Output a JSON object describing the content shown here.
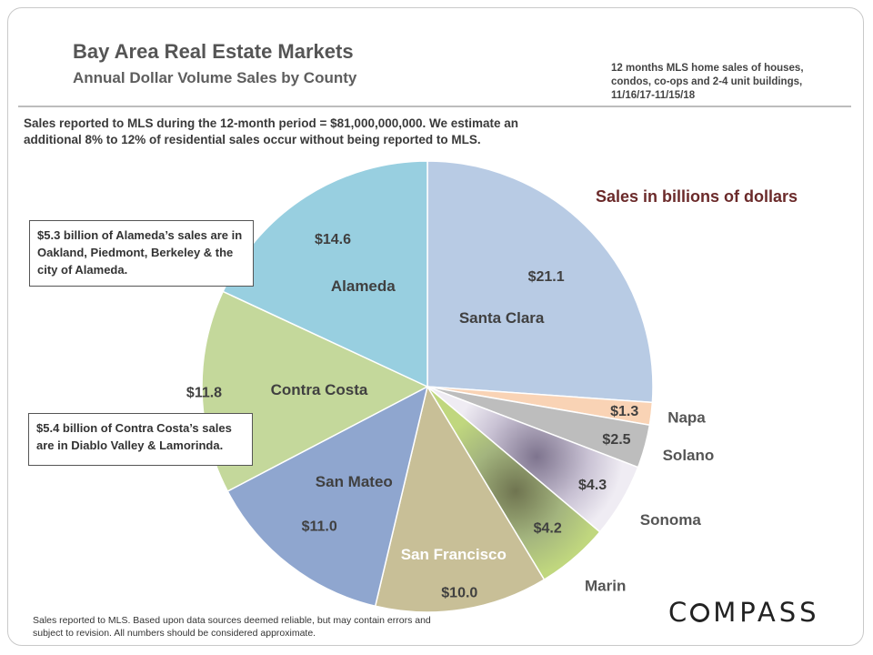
{
  "title": "Bay Area Real Estate Markets",
  "subtitle": "Annual Dollar Volume Sales by County",
  "source_note": "12 months MLS home sales of houses, condos, co-ops and 2-4 unit buildings, 11/16/17-11/15/18",
  "intro_text": "Sales reported to MLS during the 12-month period = $81,000,000,000. We estimate an additional 8% to 12% of residential sales occur without being reported to MLS.",
  "callouts": {
    "alameda": "$5.3 billion of Alameda’s sales are in Oakland, Piedmont, Berkeley & the city of Alameda.",
    "contra_costa": "$5.4 billion of Contra Costa’s sales are in Diablo Valley & Lamorinda."
  },
  "footer_text": "Sales reported to MLS. Based upon data sources deemed reliable, but may contain errors and  subject to revision. All numbers should be considered approximate.",
  "brand": {
    "o": "O",
    "rest": "MPASS",
    "c": "C"
  },
  "chart_data": {
    "type": "pie",
    "legend_title": "Sales in billions of dollars",
    "slices": [
      {
        "label": "Santa Clara",
        "value": 21.1,
        "value_label": "$21.1",
        "color": "#b8cbe4"
      },
      {
        "label": "Napa",
        "value": 1.3,
        "value_label": "$1.3",
        "color": "#f9d3b5"
      },
      {
        "label": "Solano",
        "value": 2.5,
        "value_label": "$2.5",
        "color": "#bdbdbd"
      },
      {
        "label": "Sonoma",
        "value": 4.3,
        "value_label": "$4.3",
        "color": "#a49bb3"
      },
      {
        "label": "Marin",
        "value": 4.2,
        "value_label": "$4.2",
        "color": "#a9bd80"
      },
      {
        "label": "San Francisco",
        "value": 10.0,
        "value_label": "$10.0",
        "color": "#c8bf97"
      },
      {
        "label": "San Mateo",
        "value": 11.0,
        "value_label": "$11.0",
        "color": "#8fa6cf"
      },
      {
        "label": "Contra Costa",
        "value": 11.8,
        "value_label": "$11.8",
        "color": "#c4d89b"
      },
      {
        "label": "Alameda",
        "value": 14.6,
        "value_label": "$14.6",
        "color": "#98cfe0"
      }
    ],
    "colors": {
      "legend_title": "#6b2a2a",
      "text": "#404040",
      "outside_label": "#555555"
    }
  }
}
